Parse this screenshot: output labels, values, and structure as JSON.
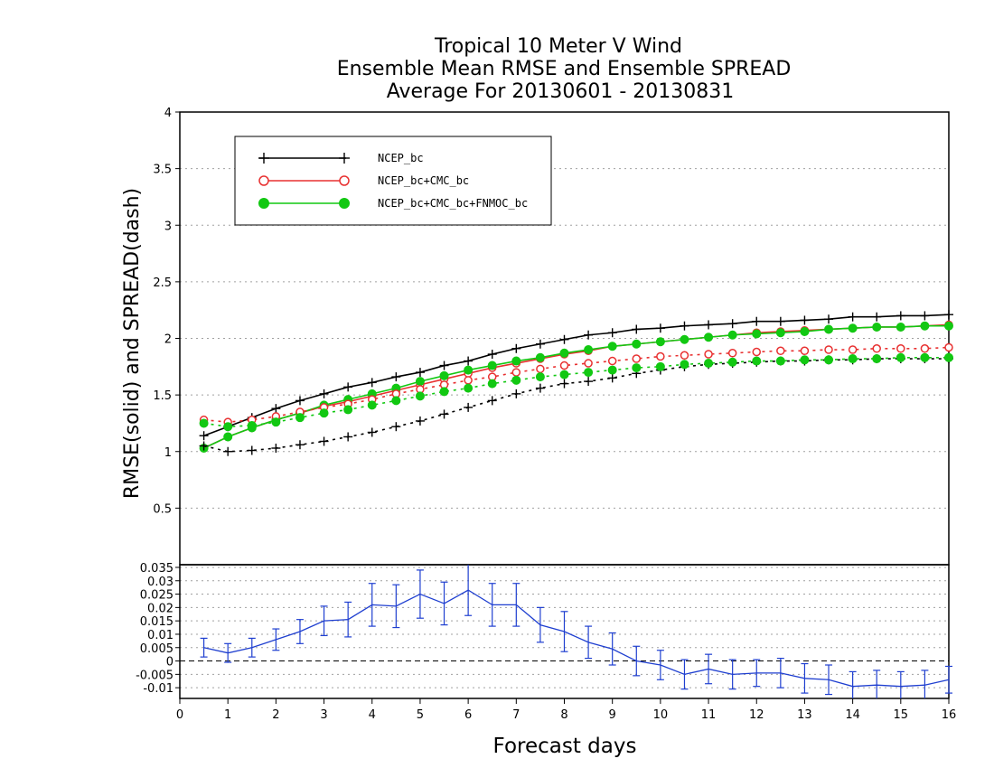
{
  "chart_data": {
    "type": "line",
    "title": [
      "Tropical 10 Meter V Wind",
      "Ensemble Mean RMSE and Ensemble SPREAD",
      "Average For 20130601 - 20130831"
    ],
    "xlabel": "Forecast days",
    "ylabel": "RMSE(solid) and SPREAD(dash)",
    "xlim": [
      0,
      16
    ],
    "ylim": [
      0,
      4
    ],
    "x_ticks": [
      "0",
      "1",
      "2",
      "3",
      "4",
      "5",
      "6",
      "7",
      "8",
      "9",
      "10",
      "11",
      "12",
      "13",
      "14",
      "15",
      "16"
    ],
    "y_ticks": [
      "0.5",
      "1",
      "1.5",
      "2",
      "2.5",
      "3",
      "3.5",
      "4"
    ],
    "grid": true,
    "legend_position": "top-left",
    "x": [
      0.5,
      1,
      1.5,
      2,
      2.5,
      3,
      3.5,
      4,
      4.5,
      5,
      5.5,
      6,
      6.5,
      7,
      7.5,
      8,
      8.5,
      9,
      9.5,
      10,
      10.5,
      11,
      11.5,
      12,
      12.5,
      13,
      13.5,
      14,
      14.5,
      15,
      15.5,
      16
    ],
    "series": [
      {
        "name": "NCEP_bc",
        "kind": "rmse",
        "style": "solid",
        "marker": "plus",
        "color": "#000000",
        "values": [
          1.14,
          1.22,
          1.3,
          1.38,
          1.45,
          1.51,
          1.57,
          1.61,
          1.66,
          1.7,
          1.76,
          1.8,
          1.86,
          1.91,
          1.95,
          1.99,
          2.03,
          2.05,
          2.08,
          2.09,
          2.11,
          2.12,
          2.13,
          2.15,
          2.15,
          2.16,
          2.17,
          2.19,
          2.19,
          2.2,
          2.2,
          2.21
        ]
      },
      {
        "name": "NCEP_bc+CMC_bc",
        "kind": "rmse",
        "style": "solid",
        "marker": "open-circle",
        "color": "#e83030",
        "values": [
          1.03,
          1.13,
          1.21,
          1.28,
          1.34,
          1.4,
          1.44,
          1.49,
          1.54,
          1.59,
          1.64,
          1.69,
          1.74,
          1.78,
          1.82,
          1.86,
          1.89,
          1.93,
          1.95,
          1.97,
          1.99,
          2.01,
          2.03,
          2.05,
          2.06,
          2.07,
          2.08,
          2.09,
          2.1,
          2.1,
          2.11,
          2.12
        ]
      },
      {
        "name": "NCEP_bc+CMC_bc+FNMOC_bc",
        "kind": "rmse",
        "style": "solid",
        "marker": "filled-circle",
        "color": "#12c812",
        "values": [
          1.03,
          1.13,
          1.21,
          1.28,
          1.34,
          1.41,
          1.46,
          1.51,
          1.56,
          1.62,
          1.67,
          1.72,
          1.76,
          1.8,
          1.83,
          1.87,
          1.9,
          1.93,
          1.95,
          1.97,
          1.99,
          2.01,
          2.03,
          2.04,
          2.05,
          2.06,
          2.08,
          2.09,
          2.1,
          2.1,
          2.11,
          2.11
        ]
      },
      {
        "kind": "spread",
        "style": "dash",
        "marker": "plus",
        "color": "#000000",
        "values": [
          1.05,
          1.0,
          1.01,
          1.03,
          1.06,
          1.09,
          1.13,
          1.17,
          1.22,
          1.27,
          1.33,
          1.39,
          1.45,
          1.51,
          1.56,
          1.6,
          1.62,
          1.65,
          1.69,
          1.72,
          1.75,
          1.77,
          1.78,
          1.79,
          1.8,
          1.8,
          1.81,
          1.81,
          1.82,
          1.82,
          1.82,
          1.82
        ]
      },
      {
        "kind": "spread",
        "style": "dash",
        "marker": "open-circle",
        "color": "#e83030",
        "values": [
          1.28,
          1.26,
          1.28,
          1.31,
          1.35,
          1.39,
          1.42,
          1.46,
          1.51,
          1.55,
          1.59,
          1.63,
          1.66,
          1.7,
          1.73,
          1.76,
          1.78,
          1.8,
          1.82,
          1.84,
          1.85,
          1.86,
          1.87,
          1.88,
          1.89,
          1.89,
          1.9,
          1.9,
          1.91,
          1.91,
          1.91,
          1.92
        ]
      },
      {
        "kind": "spread",
        "style": "dash",
        "marker": "filled-circle",
        "color": "#12c812",
        "values": [
          1.25,
          1.22,
          1.23,
          1.26,
          1.3,
          1.34,
          1.37,
          1.41,
          1.45,
          1.49,
          1.53,
          1.56,
          1.6,
          1.63,
          1.66,
          1.68,
          1.7,
          1.72,
          1.74,
          1.75,
          1.77,
          1.78,
          1.79,
          1.8,
          1.8,
          1.81,
          1.81,
          1.82,
          1.82,
          1.83,
          1.83,
          1.83
        ]
      }
    ],
    "difference_panel": {
      "ylim": [
        -0.014,
        0.036
      ],
      "y_ticks": [
        "-0.01",
        "-0.005",
        "0",
        "0.005",
        "0.01",
        "0.015",
        "0.02",
        "0.025",
        "0.03",
        "0.035"
      ],
      "color": "#1f3fd0",
      "values": [
        0.005,
        0.003,
        0.005,
        0.008,
        0.011,
        0.015,
        0.0155,
        0.021,
        0.0205,
        0.025,
        0.0215,
        0.0265,
        0.021,
        0.021,
        0.0135,
        0.011,
        0.007,
        0.0045,
        0.0,
        -0.0015,
        -0.005,
        -0.003,
        -0.005,
        -0.0045,
        -0.0045,
        -0.0065,
        -0.007,
        -0.0095,
        -0.009,
        -0.0095,
        -0.009,
        -0.007
      ],
      "errors": [
        0.0035,
        0.0035,
        0.0035,
        0.004,
        0.0045,
        0.0055,
        0.0065,
        0.008,
        0.008,
        0.009,
        0.008,
        0.0095,
        0.008,
        0.008,
        0.0065,
        0.0075,
        0.006,
        0.006,
        0.0055,
        0.0055,
        0.0055,
        0.0055,
        0.0055,
        0.005,
        0.0055,
        0.0055,
        0.0055,
        0.0055,
        0.0055,
        0.0055,
        0.0055,
        0.005
      ]
    }
  }
}
